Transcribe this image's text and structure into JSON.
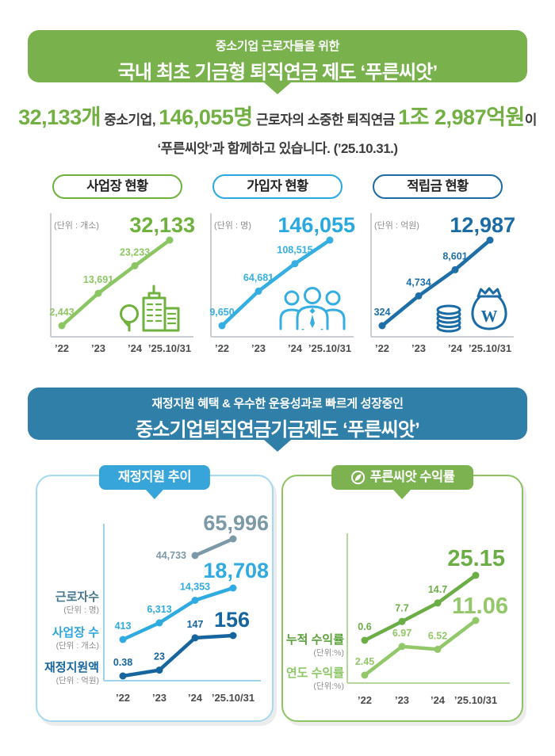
{
  "top_banner": {
    "line1": "중소기업 근로자들을 위한",
    "line2": "국내 최초 기금형 퇴직연금 제도 ‘푸른씨앗’",
    "bg_color": "#79b14c"
  },
  "intro": {
    "segments": [
      {
        "text": "32,133개",
        "highlight": true
      },
      {
        "text": " 중소기업, ",
        "highlight": false
      },
      {
        "text": "146,055명",
        "highlight": true
      },
      {
        "text": " 근로자의 소중한 퇴직연금 ",
        "highlight": false
      },
      {
        "text": "1조 2,987억원",
        "highlight": true
      },
      {
        "text": "이",
        "highlight": false
      }
    ],
    "line2": "‘푸른씨앗’과 함께하고 있습니다. (’25.10.31.)",
    "highlight_color": "#72b043",
    "text_color": "#3c3c3c"
  },
  "mid_banner": {
    "line1": "재정지원 혜택 & 우수한 운용성과로 빠르게 성장중인",
    "line2": "중소기업퇴직연금기금제도 ‘푸른씨앗’",
    "bg_color": "#2f7fa8"
  },
  "chart_data": [
    {
      "id": "workplace-status",
      "type": "line",
      "title": "사업장 현황",
      "unit": "(단위 : 개소)",
      "categories": [
        "’22",
        "’23",
        "’24",
        "’25.10/31"
      ],
      "values": [
        2443,
        13691,
        23233,
        32133
      ],
      "value_labels": [
        "2,443",
        "13,691",
        "23,233",
        "32,133"
      ],
      "line_color": "#8cc663",
      "accent_color": "#6fb13d",
      "icon_color": "#6fb13d",
      "icon": "building-tree-icon"
    },
    {
      "id": "subscriber-status",
      "type": "line",
      "title": "가입자 현황",
      "unit": "(단위 : 명)",
      "categories": [
        "’22",
        "’23",
        "’24",
        "’25.10/31"
      ],
      "values": [
        9650,
        64681,
        108515,
        146055
      ],
      "value_labels": [
        "9,650",
        "64,681",
        "108,515",
        "146,055"
      ],
      "line_color": "#35aee2",
      "accent_color": "#2aa9e1",
      "icon_color": "#35aee2",
      "icon": "people-icon"
    },
    {
      "id": "reserve-status",
      "type": "line",
      "title": "적립금 현황",
      "unit": "(단위 : 억원)",
      "categories": [
        "’22",
        "’23",
        "’24",
        "’25.10/31"
      ],
      "values": [
        324,
        4734,
        8601,
        12987
      ],
      "value_labels": [
        "324",
        "4,734",
        "8,601",
        "12,987"
      ],
      "line_color": "#1e6ea8",
      "accent_color": "#1b6ba5",
      "icon_color": "#1b6ba5",
      "icon": "money-bag-icon"
    },
    {
      "id": "fiscal-support-trend",
      "type": "line",
      "title": "재정지원 추이",
      "header_bg": "#38a5da",
      "categories": [
        "’22",
        "’23",
        "’24",
        "’25.10/31"
      ],
      "series": [
        {
          "name": "근로자수",
          "unit": "(단위 : 명)",
          "name_color": "#48788e",
          "line_color": "#7b99a6",
          "values": [
            null,
            null,
            44733,
            65996
          ],
          "value_labels": [
            null,
            null,
            "44,733",
            "65,996"
          ]
        },
        {
          "name": "사업장 수",
          "unit": "(단위 : 개소)",
          "name_color": "#2da7dd",
          "line_color": "#2fabe1",
          "values": [
            413,
            6313,
            14353,
            18708
          ],
          "value_labels": [
            "413",
            "6,313",
            "14,353",
            "18,708"
          ]
        },
        {
          "name": "재정지원액",
          "unit": "(단위 : 억원)",
          "name_color": "#16659f",
          "line_color": "#16659f",
          "values": [
            0.38,
            23,
            147,
            156
          ],
          "value_labels": [
            "0.38",
            "23",
            "147",
            "156"
          ]
        }
      ]
    },
    {
      "id": "blueseed-returns",
      "type": "line",
      "title": "푸른씨앗 수익률",
      "header_bg": "#7cb350",
      "categories": [
        "’22",
        "’23",
        "’24",
        "’25.10/31"
      ],
      "series": [
        {
          "name": "누적 수익률",
          "unit": "(단위:%)",
          "name_color": "#5aa23a",
          "line_color": "#6cae46",
          "values": [
            0.6,
            7.7,
            14.7,
            25.15
          ],
          "value_labels": [
            "0.6",
            "7.7",
            "14.7",
            "25.15"
          ]
        },
        {
          "name": "연도 수익률",
          "unit": "(단위:%)",
          "name_color": "#8fc767",
          "line_color": "#93c86a",
          "values": [
            2.45,
            6.97,
            6.52,
            11.06
          ],
          "value_labels": [
            "2.45",
            "6.97",
            "6.52",
            "11.06"
          ]
        }
      ]
    }
  ]
}
